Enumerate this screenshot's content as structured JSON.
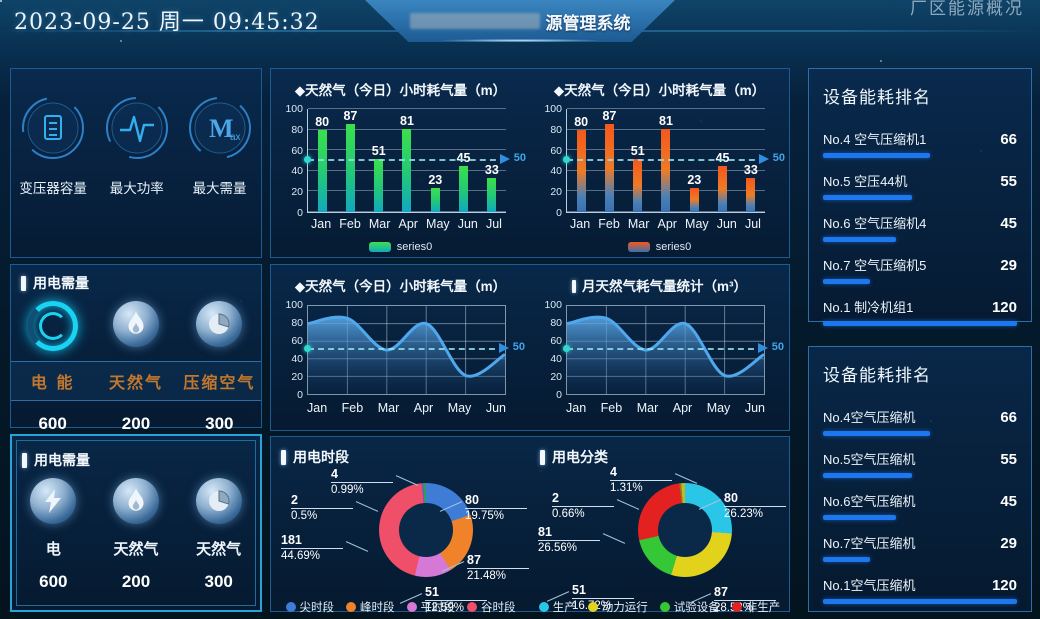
{
  "header": {
    "datetime": "2023-09-25 周一 09:45:32",
    "title_suffix": "源管理系统",
    "nav_right": "厂区能源概况"
  },
  "left": {
    "stats_panel": {
      "items": [
        {
          "label": "变压器容量",
          "icon": "transformer-capacity-icon"
        },
        {
          "label": "最大功率",
          "icon": "max-power-icon"
        },
        {
          "label": "最大需量",
          "icon": "max-demand-icon"
        }
      ]
    },
    "demand_panel_top": {
      "title": "用电需量",
      "items": [
        {
          "label": "电 能",
          "value": "600",
          "icon": "electric-ring-icon"
        },
        {
          "label": "天然气",
          "value": "200",
          "icon": "flame-icon"
        },
        {
          "label": "压缩空气",
          "value": "300",
          "icon": "pie-sphere-icon"
        }
      ]
    },
    "demand_panel_bottom": {
      "title": "用电需量",
      "items": [
        {
          "label": "电",
          "value": "600",
          "icon": "lightning-icon"
        },
        {
          "label": "天然气",
          "value": "200",
          "icon": "flame-icon"
        },
        {
          "label": "天然气",
          "value": "300",
          "icon": "pie-sphere-icon"
        }
      ]
    }
  },
  "chart_data": [
    {
      "type": "bar",
      "title": "◆天然气（今日）小时耗气量（m）",
      "categories": [
        "Jan",
        "Feb",
        "Mar",
        "Apr",
        "May",
        "Jun",
        "Jul"
      ],
      "values": [
        80,
        87,
        51,
        81,
        23,
        45,
        33
      ],
      "ylim": [
        0,
        100
      ],
      "markline": 50,
      "legend": [
        "series0"
      ],
      "color_theme": "green"
    },
    {
      "type": "bar",
      "title": "◆天然气（今日）小时耗气量（m）",
      "categories": [
        "Jan",
        "Feb",
        "Mar",
        "Apr",
        "May",
        "Jun",
        "Jul"
      ],
      "values": [
        80,
        87,
        51,
        81,
        23,
        45,
        33
      ],
      "ylim": [
        0,
        100
      ],
      "markline": 50,
      "legend": [
        "series0"
      ],
      "color_theme": "orange"
    },
    {
      "type": "area",
      "title": "◆天然气（今日）小时耗气量（m）",
      "categories": [
        "Jan",
        "Feb",
        "Mar",
        "Apr",
        "May",
        "Jun"
      ],
      "values": [
        80,
        86,
        50,
        80,
        21,
        45
      ],
      "ylim": [
        0,
        100
      ],
      "markline": 50
    },
    {
      "type": "area",
      "title": "月天然气耗气量统计（m³）",
      "categories": [
        "Jan",
        "Feb",
        "Mar",
        "Apr",
        "May",
        "Jun"
      ],
      "values": [
        80,
        86,
        50,
        80,
        21,
        45
      ],
      "ylim": [
        0,
        100
      ],
      "markline": 50
    },
    {
      "type": "pie",
      "title": "用电时段",
      "slices": [
        {
          "label": "尖时段",
          "value": 80,
          "pct": "19.75%",
          "color": "#3f7cd6"
        },
        {
          "label": "峰时段",
          "value": 87,
          "pct": "21.48%",
          "color": "#f0832a"
        },
        {
          "label": "平时段",
          "value": 51,
          "pct": "12.59%",
          "color": "#d678d6"
        },
        {
          "label": "谷时段",
          "value": 181,
          "pct": "44.69%",
          "color": "#ef4f68"
        },
        {
          "label": "",
          "value": 2,
          "pct": "0.5%",
          "color": "#7a52b5"
        },
        {
          "label": "",
          "value": 4,
          "pct": "0.99%",
          "color": "#2a9d62"
        }
      ]
    },
    {
      "type": "pie",
      "title": "用电分类",
      "slices": [
        {
          "label": "生产",
          "value": 80,
          "pct": "26.23%",
          "color": "#29c6e8"
        },
        {
          "label": "动力运行",
          "value": 87,
          "pct": "28.52%",
          "color": "#e3d21c"
        },
        {
          "label": "试验设备",
          "value": 51,
          "pct": "16.72%",
          "color": "#35c735"
        },
        {
          "label": "非生产",
          "value": 81,
          "pct": "26.56%",
          "color": "#e32121"
        },
        {
          "label": "",
          "value": 2,
          "pct": "0.66%",
          "color": "#8a7a1a"
        },
        {
          "label": "",
          "value": 4,
          "pct": "1.31%",
          "color": "#c8b820"
        }
      ]
    }
  ],
  "rankings": [
    {
      "title": "设备能耗排名",
      "max": 120,
      "items": [
        {
          "label": "No.4 空气压缩机1",
          "value": 66
        },
        {
          "label": "No.5 空压44机",
          "value": 55
        },
        {
          "label": "No.6 空气压缩机4",
          "value": 45
        },
        {
          "label": "No.7 空气压缩机5",
          "value": 29
        },
        {
          "label": "No.1 制冷机组1",
          "value": 120
        }
      ]
    },
    {
      "title": "设备能耗排名",
      "max": 120,
      "items": [
        {
          "label": "No.4空气压缩机",
          "value": 66
        },
        {
          "label": "No.5空气压缩机",
          "value": 55
        },
        {
          "label": "No.6空气压缩机",
          "value": 45
        },
        {
          "label": "No.7空气压缩机",
          "value": 29
        },
        {
          "label": "No.1空气压缩机",
          "value": 120
        }
      ]
    }
  ],
  "colors": {
    "bar_green": "#3ce04b",
    "bar_orange": "#f4581c",
    "area_line": "#4fa8ee",
    "rank_bar": "#1d78ef",
    "markline_label": "#3fa6e8",
    "demand_label_bronze": "#c2772e"
  }
}
